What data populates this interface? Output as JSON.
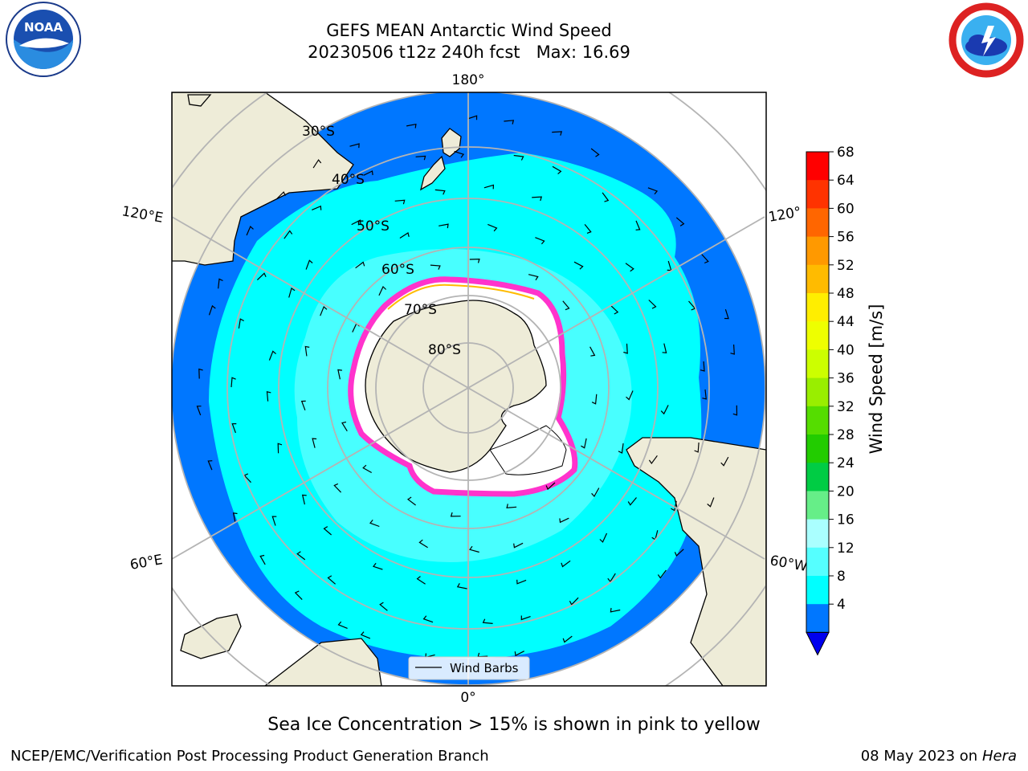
{
  "title_line1": "GEFS MEAN Antarctic Wind Speed",
  "title_line2": "20230506 t12z 240h fcst   Max: 16.69",
  "caption": "Sea Ice Concentration > 15% is shown in pink to yellow",
  "footer_left": "NCEP/EMC/Verification Post Processing Product Generation Branch",
  "footer_date": "08 May 2023 on",
  "footer_host": "Hera",
  "legend_label": "Wind Barbs",
  "lon_labels": {
    "top": "180°",
    "bottom": "0°",
    "left_upper": "120°E",
    "left_lower": "60°E",
    "right_upper": "120°",
    "right_lower": "60°W"
  },
  "lat_labels": [
    "30°S",
    "40°S",
    "50°S",
    "60°S",
    "70°S",
    "80°S"
  ],
  "colorbar": {
    "label": "Wind Speed [m/s]",
    "ticks": [
      "68",
      "64",
      "60",
      "56",
      "52",
      "48",
      "44",
      "40",
      "36",
      "32",
      "28",
      "24",
      "20",
      "16",
      "12",
      "8",
      "4"
    ],
    "colors": [
      "#ff0000",
      "#ff3300",
      "#ff6600",
      "#ff9900",
      "#ffbb00",
      "#ffee00",
      "#eeff00",
      "#ccff00",
      "#99ee00",
      "#55dd00",
      "#22cc00",
      "#00cc44",
      "#66ee88",
      "#aaffff",
      "#55ffff",
      "#00ffff",
      "#0077ff"
    ],
    "under_color": "#0000ee"
  },
  "colors": {
    "land": "#eeecd8",
    "ocean_high": "#0077ff",
    "ocean_mid": "#00ffff",
    "ocean_light": "#55ffff",
    "ice_edge": "#ff33cc",
    "grid": "#b4b4b4"
  }
}
